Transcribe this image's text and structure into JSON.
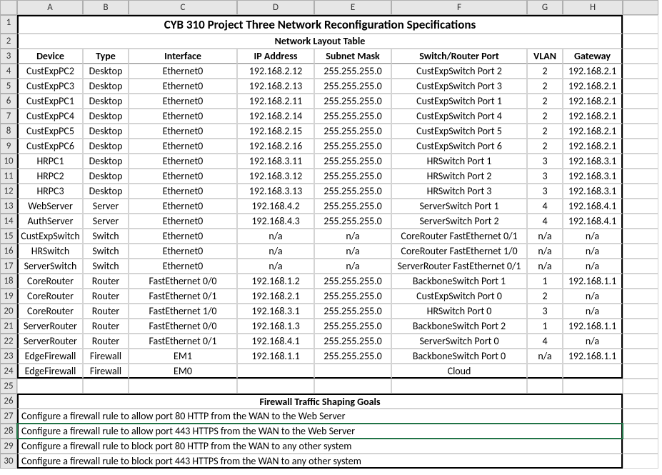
{
  "columns": [
    "A",
    "B",
    "C",
    "D",
    "E",
    "F",
    "G",
    "H"
  ],
  "rowCount": 30,
  "title": "CYB 310 Project Three Network Reconfiguration Specifications",
  "section1": "Network Layout Table",
  "headers": [
    "Device",
    "Type",
    "Interface",
    "IP Address",
    "Subnet Mask",
    "Switch/Router Port",
    "VLAN",
    "Gateway"
  ],
  "rows": [
    [
      "CustExpPC2",
      "Desktop",
      "Ethernet0",
      "192.168.2.12",
      "255.255.255.0",
      "CustExpSwitch Port 2",
      "2",
      "192.168.2.1"
    ],
    [
      "CustExpPC3",
      "Desktop",
      "Ethernet0",
      "192.168.2.13",
      "255.255.255.0",
      "CustExpSwitch Port 3",
      "2",
      "192.168.2.1"
    ],
    [
      "CustExpPC1",
      "Desktop",
      "Ethernet0",
      "192.168.2.11",
      "255.255.255.0",
      "CustExpSwitch Port 1",
      "2",
      "192.168.2.1"
    ],
    [
      "CustExpPC4",
      "Desktop",
      "Ethernet0",
      "192.168.2.14",
      "255.255.255.0",
      "CustExpSwitch Port 4",
      "2",
      "192.168.2.1"
    ],
    [
      "CustExpPC5",
      "Desktop",
      "Ethernet0",
      "192.168.2.15",
      "255.255.255.0",
      "CustExpSwitch Port 5",
      "2",
      "192.168.2.1"
    ],
    [
      "CustExpPC6",
      "Desktop",
      "Ethernet0",
      "192.168.2.16",
      "255.255.255.0",
      "CustExpSwitch Port 6",
      "2",
      "192.168.2.1"
    ],
    [
      "HRPC1",
      "Desktop",
      "Ethernet0",
      "192.168.3.11",
      "255.255.255.0",
      "HRSwitch Port 1",
      "3",
      "192.168.3.1"
    ],
    [
      "HRPC2",
      "Desktop",
      "Ethernet0",
      "192.168.3.12",
      "255.255.255.0",
      "HRSwitch Port 2",
      "3",
      "192.168.3.1"
    ],
    [
      "HRPC3",
      "Desktop",
      "Ethernet0",
      "192.168.3.13",
      "255.255.255.0",
      "HRSwitch Port 3",
      "3",
      "192.168.3.1"
    ],
    [
      "WebServer",
      "Server",
      "Ethernet0",
      "192.168.4.2",
      "255.255.255.0",
      "ServerSwitch Port 1",
      "4",
      "192.168.4.1"
    ],
    [
      "AuthServer",
      "Server",
      "Ethernet0",
      "192.168.4.3",
      "255.255.255.0",
      "ServerSwitch Port 2",
      "4",
      "192.168.4.1"
    ],
    [
      "CustExpSwitch",
      "Switch",
      "Ethernet0",
      "n/a",
      "n/a",
      "CoreRouter FastEthernet 0/1",
      "n/a",
      "n/a"
    ],
    [
      "HRSwitch",
      "Switch",
      "Ethernet0",
      "n/a",
      "n/a",
      "CoreRouter FastEthernet 1/0",
      "n/a",
      "n/a"
    ],
    [
      "ServerSwitch",
      "Switch",
      "Ethernet0",
      "n/a",
      "n/a",
      "ServerRouter FastEthernet 0/1",
      "n/a",
      "n/a"
    ],
    [
      "CoreRouter",
      "Router",
      "FastEthernet 0/0",
      "192.168.1.2",
      "255.255.255.0",
      "BackboneSwitch Port 1",
      "1",
      "192.168.1.1"
    ],
    [
      "CoreRouter",
      "Router",
      "FastEthernet 0/1",
      "192.168.2.1",
      "255.255.255.0",
      "CustExpSwitch Port 0",
      "2",
      "n/a"
    ],
    [
      "CoreRouter",
      "Router",
      "FastEthernet 1/0",
      "192.168.3.1",
      "255.255.255.0",
      "HRSwitch Port 0",
      "3",
      "n/a"
    ],
    [
      "ServerRouter",
      "Router",
      "FastEthernet 0/0",
      "192.168.1.3",
      "255.255.255.0",
      "BackboneSwitch Port 2",
      "1",
      "192.168.1.1"
    ],
    [
      "ServerRouter",
      "Router",
      "FastEthernet 0/1",
      "192.168.4.1",
      "255.255.255.0",
      "ServerSwitch Port 0",
      "4",
      "n/a"
    ],
    [
      "EdgeFirewall",
      "Firewall",
      "EM1",
      "192.168.1.1",
      "255.255.255.0",
      "BackboneSwitch Port 0",
      "n/a",
      "192.168.1.1"
    ],
    [
      "EdgeFirewall",
      "Firewall",
      "EM0",
      "",
      "",
      "Cloud",
      "",
      ""
    ]
  ],
  "section2": "Firewall Traffic Shaping Goals",
  "goals": [
    "Configure a firewall rule to allow port 80 HTTP from the WAN to the Web Server",
    "Configure a firewall rule to allow port 443 HTTPS from the WAN to the Web Server",
    "Configure a firewall rule to block port 80 HTTP from the WAN to any other system",
    "Configure a firewall rule to block port 443 HTTPS from the WAN to any other system"
  ],
  "selectedRow": 28,
  "colors": {
    "gridline": "#d4d4d4",
    "headerBg": "#e6e6e6",
    "headerBorder": "#b0b0b0",
    "selection": "#217346",
    "text": "#000000",
    "background": "#ffffff"
  },
  "fontsize_body": 14,
  "fontsize_title": 17
}
